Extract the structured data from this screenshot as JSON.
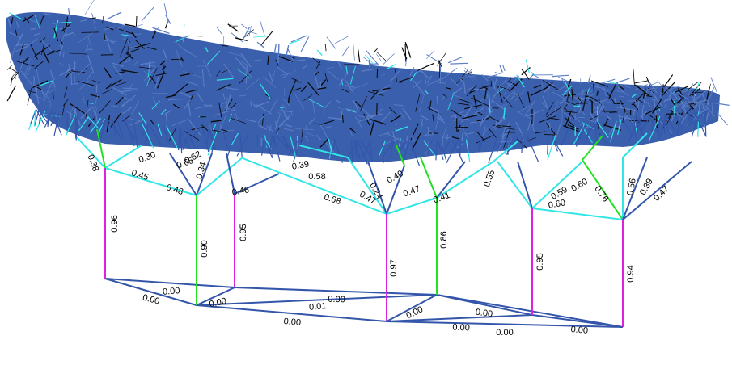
{
  "colors": {
    "background": "#ffffff",
    "dense": "#3a5fad",
    "magenta": "#e020e0",
    "green": "#22e022",
    "cyan": "#30e6e6",
    "blue": "#3355aa",
    "dark": "#0a0a0a"
  },
  "pillar_labels": [
    "0.96",
    "0.90",
    "0.95",
    "0.97",
    "0.86",
    "0.95",
    "0.94"
  ],
  "base_labels": [
    "0.00",
    "0.00",
    "0.00",
    "0.01",
    "0.00",
    "0.00",
    "0.00",
    "0.00",
    "0.00",
    "0.00",
    "0.00"
  ],
  "junction_labels": [
    "0.38",
    "0.45",
    "0.48",
    "0.34",
    "0.46",
    "0.68",
    "0.47",
    "0.47",
    "0.41",
    "0.59",
    "0.60",
    "0.60",
    "0.76",
    "0.56",
    "0.39",
    "0.47",
    "0.58",
    "0.24",
    "0.65",
    "0.55",
    "0.30",
    "0.62",
    "0.40",
    "0.39"
  ]
}
